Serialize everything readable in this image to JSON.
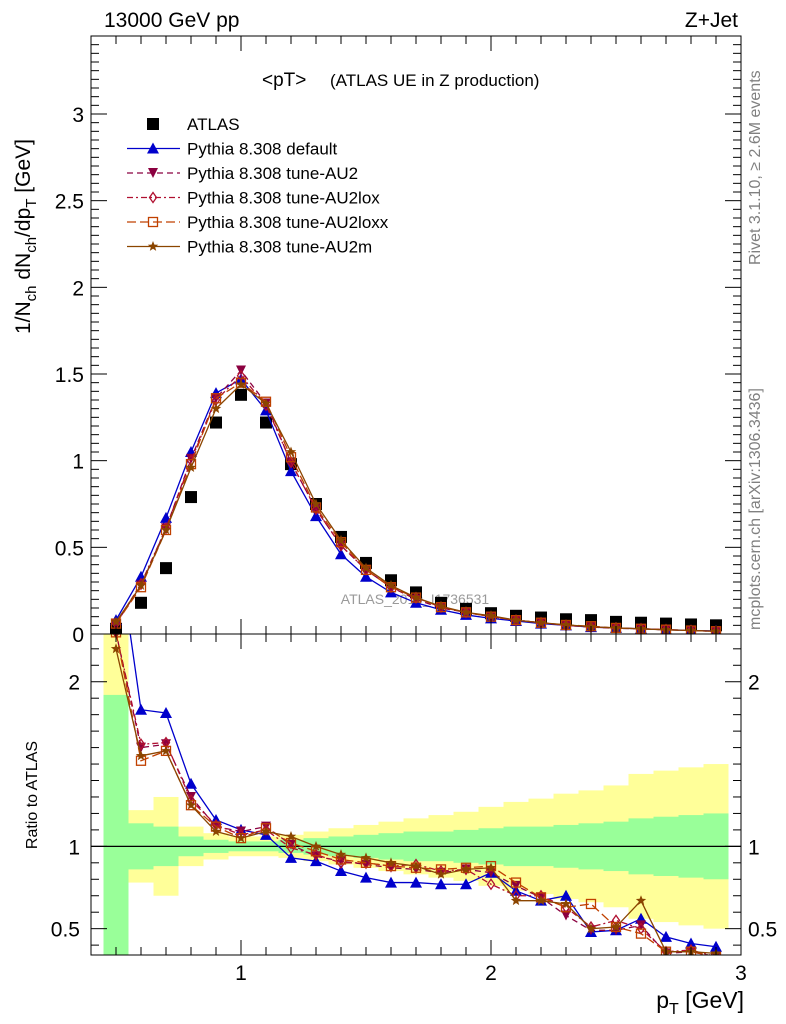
{
  "header": {
    "left": "13000 GeV pp",
    "right": "Z+Jet",
    "plot_title_main": "<pT>",
    "plot_title_sub": "(ATLAS UE in Z production)",
    "side_rivet": "Rivet 3.1.10, ≥ 2.6M events",
    "side_mcplots": "mcplots.cern.ch [arXiv:1306.3436]",
    "watermark": "ATLAS_2019_I1736531"
  },
  "colors": {
    "data": "#000000",
    "default": "#0000cc",
    "au2": "#8b0040",
    "au2lox": "#b01030",
    "au2loxx": "#c04000",
    "au2m": "#8b4500",
    "band_inner": "#99ff99",
    "band_outer": "#ffff99"
  },
  "chart_data": [
    {
      "type": "scatter",
      "panel": "main",
      "ylabel_parts": [
        "1/N",
        "ch",
        " dN",
        "ch",
        "/dp",
        "T",
        " [GeV]"
      ],
      "xlim": [
        0.4,
        3.0
      ],
      "ylim": [
        0,
        3.45
      ],
      "yticks": [
        "0",
        "0.5",
        "1",
        "1.5",
        "2",
        "2.5",
        "3"
      ],
      "legend_position": "top-left",
      "x": [
        0.5,
        0.6,
        0.7,
        0.8,
        0.9,
        1.0,
        1.1,
        1.2,
        1.3,
        1.4,
        1.5,
        1.6,
        1.7,
        1.8,
        1.9,
        2.0,
        2.1,
        2.2,
        2.3,
        2.4,
        2.5,
        2.6,
        2.7,
        2.8,
        2.9
      ],
      "series": [
        {
          "key": "data",
          "name": "ATLAS",
          "marker": "square",
          "line": "none",
          "values": [
            0.03,
            0.18,
            0.38,
            0.79,
            1.22,
            1.38,
            1.22,
            0.98,
            0.75,
            0.56,
            0.41,
            0.31,
            0.24,
            0.18,
            0.145,
            0.12,
            0.105,
            0.095,
            0.085,
            0.08,
            0.07,
            0.065,
            0.06,
            0.055,
            0.05
          ]
        },
        {
          "key": "default",
          "name": "Pythia 8.308 default",
          "marker": "triangle-up",
          "line": "solid",
          "values": [
            0.08,
            0.33,
            0.67,
            1.05,
            1.39,
            1.47,
            1.29,
            0.94,
            0.68,
            0.46,
            0.33,
            0.24,
            0.18,
            0.14,
            0.11,
            0.09,
            0.075,
            0.06,
            0.05,
            0.04,
            0.035,
            0.03,
            0.025,
            0.02,
            0.018
          ]
        },
        {
          "key": "au2",
          "name": "Pythia 8.308 tune-AU2",
          "marker": "triangle-down",
          "line": "dash",
          "values": [
            0.06,
            0.28,
            0.61,
            1.01,
            1.36,
            1.52,
            1.33,
            0.99,
            0.72,
            0.51,
            0.37,
            0.27,
            0.2,
            0.15,
            0.125,
            0.1,
            0.08,
            0.065,
            0.05,
            0.04,
            0.033,
            0.03,
            0.025,
            0.02,
            0.015
          ]
        },
        {
          "key": "au2lox",
          "name": "Pythia 8.308 tune-AU2lox",
          "marker": "diamond-open",
          "line": "dashdot",
          "values": [
            0.06,
            0.29,
            0.61,
            1.0,
            1.35,
            1.49,
            1.32,
            0.99,
            0.72,
            0.51,
            0.37,
            0.27,
            0.21,
            0.155,
            0.125,
            0.1,
            0.08,
            0.065,
            0.05,
            0.04,
            0.035,
            0.03,
            0.025,
            0.02,
            0.015
          ]
        },
        {
          "key": "au2loxx",
          "name": "Pythia 8.308 tune-AU2loxx",
          "marker": "square-open",
          "line": "longdash",
          "values": [
            0.06,
            0.27,
            0.6,
            0.98,
            1.36,
            1.45,
            1.34,
            1.02,
            0.73,
            0.53,
            0.37,
            0.27,
            0.21,
            0.155,
            0.125,
            0.1,
            0.08,
            0.065,
            0.052,
            0.045,
            0.035,
            0.03,
            0.025,
            0.02,
            0.016
          ]
        },
        {
          "key": "au2m",
          "name": "Pythia 8.308 tune-AU2m",
          "marker": "star",
          "line": "solid",
          "values": [
            0.07,
            0.28,
            0.6,
            0.96,
            1.3,
            1.44,
            1.33,
            1.05,
            0.75,
            0.54,
            0.38,
            0.28,
            0.21,
            0.16,
            0.125,
            0.105,
            0.08,
            0.065,
            0.053,
            0.042,
            0.035,
            0.03,
            0.024,
            0.02,
            0.016
          ]
        }
      ]
    },
    {
      "type": "line",
      "panel": "ratio",
      "ylabel": "Ratio to ATLAS",
      "xlabel_parts": [
        "p",
        "T",
        " [GeV]"
      ],
      "xlim": [
        0.4,
        3.0
      ],
      "ylim": [
        0.34,
        2.29
      ],
      "yticks": [
        "0.5",
        "1",
        "2"
      ],
      "xticks": [
        "1",
        "2",
        "3"
      ],
      "bands": {
        "edges": [
          0.45,
          0.55,
          0.65,
          0.75,
          0.85,
          0.95,
          1.05,
          1.15,
          1.25,
          1.35,
          1.45,
          1.55,
          1.65,
          1.75,
          1.85,
          1.95,
          2.05,
          2.15,
          2.25,
          2.35,
          2.45,
          2.55,
          2.65,
          2.75,
          2.85,
          2.95
        ],
        "inner_upper": [
          1.92,
          1.14,
          1.12,
          1.06,
          1.04,
          1.03,
          1.03,
          1.04,
          1.05,
          1.06,
          1.07,
          1.08,
          1.09,
          1.09,
          1.1,
          1.11,
          1.12,
          1.12,
          1.13,
          1.14,
          1.15,
          1.17,
          1.18,
          1.19,
          1.2
        ],
        "inner_lower": [
          0.08,
          0.86,
          0.88,
          0.94,
          0.96,
          0.97,
          0.97,
          0.96,
          0.95,
          0.94,
          0.93,
          0.92,
          0.91,
          0.91,
          0.9,
          0.89,
          0.88,
          0.88,
          0.87,
          0.86,
          0.85,
          0.83,
          0.82,
          0.81,
          0.8
        ],
        "outer_upper": [
          2.29,
          1.22,
          1.3,
          1.12,
          1.08,
          1.06,
          1.06,
          1.07,
          1.09,
          1.11,
          1.13,
          1.15,
          1.17,
          1.19,
          1.21,
          1.24,
          1.27,
          1.29,
          1.32,
          1.34,
          1.37,
          1.44,
          1.46,
          1.48,
          1.5
        ],
        "outer_lower": [
          0.08,
          0.78,
          0.7,
          0.88,
          0.92,
          0.94,
          0.94,
          0.93,
          0.91,
          0.89,
          0.87,
          0.85,
          0.83,
          0.81,
          0.79,
          0.76,
          0.73,
          0.71,
          0.68,
          0.66,
          0.63,
          0.56,
          0.54,
          0.52,
          0.5
        ]
      },
      "x": [
        0.5,
        0.6,
        0.7,
        0.8,
        0.9,
        1.0,
        1.1,
        1.2,
        1.3,
        1.4,
        1.5,
        1.6,
        1.7,
        1.8,
        1.9,
        2.0,
        2.1,
        2.2,
        2.3,
        2.4,
        2.5,
        2.6,
        2.7,
        2.8,
        2.9
      ],
      "series": [
        {
          "key": "default",
          "values": [
            2.9,
            1.83,
            1.81,
            1.38,
            1.16,
            1.1,
            1.07,
            0.93,
            0.91,
            0.85,
            0.81,
            0.78,
            0.78,
            0.77,
            0.77,
            0.84,
            0.73,
            0.67,
            0.7,
            0.48,
            0.49,
            0.56,
            0.45,
            0.41,
            0.39
          ]
        },
        {
          "key": "au2",
          "values": [
            2.3,
            1.6,
            1.62,
            1.3,
            1.12,
            1.09,
            1.12,
            1.01,
            0.94,
            0.91,
            0.89,
            0.87,
            0.86,
            0.84,
            0.86,
            0.84,
            0.76,
            0.69,
            0.58,
            0.49,
            0.49,
            0.52,
            0.35,
            0.36,
            0.33
          ]
        },
        {
          "key": "au2lox",
          "values": [
            2.3,
            1.62,
            1.63,
            1.28,
            1.13,
            1.07,
            1.1,
            0.99,
            0.95,
            0.9,
            0.9,
            0.88,
            0.89,
            0.85,
            0.86,
            0.77,
            0.7,
            0.7,
            0.63,
            0.51,
            0.55,
            0.5,
            0.36,
            0.37,
            0.33
          ]
        },
        {
          "key": "au2loxx",
          "values": [
            2.3,
            1.52,
            1.58,
            1.25,
            1.12,
            1.05,
            1.11,
            1.02,
            0.97,
            0.92,
            0.9,
            0.88,
            0.87,
            0.86,
            0.87,
            0.88,
            0.78,
            0.69,
            0.63,
            0.65,
            0.51,
            0.47,
            0.36,
            0.36,
            0.33
          ]
        },
        {
          "key": "au2m",
          "values": [
            2.2,
            1.55,
            1.58,
            1.25,
            1.09,
            1.05,
            1.09,
            1.06,
            1.0,
            0.95,
            0.93,
            0.9,
            0.88,
            0.83,
            0.86,
            0.87,
            0.67,
            0.67,
            0.65,
            0.5,
            0.51,
            0.67,
            0.36,
            0.36,
            0.35
          ]
        }
      ]
    }
  ]
}
